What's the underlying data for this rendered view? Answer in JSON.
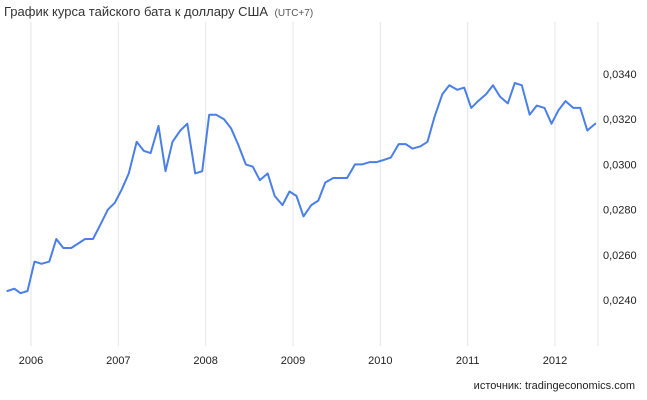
{
  "title": "График курса тайского бата к доллару США",
  "timezone": "(UTC+7)",
  "source": {
    "label": "источник:",
    "name": "tradingeconomics.com"
  },
  "colors": {
    "line": "#4a7fe8",
    "grid": "#e6e6e6",
    "axis_text": "#222222"
  },
  "chart_data": {
    "type": "line",
    "title": "График курса тайского бата к доллару США",
    "xlabel": "",
    "ylabel": "",
    "x_ticks": [
      "2006",
      "2007",
      "2008",
      "2009",
      "2010",
      "2011",
      "2012"
    ],
    "y_ticks": [
      "0,0240",
      "0,0260",
      "0,0280",
      "0,0300",
      "0,0320",
      "0,0340"
    ],
    "y_tick_values": [
      0.024,
      0.026,
      0.028,
      0.03,
      0.032,
      0.034
    ],
    "xlim": [
      2005.72,
      2012.48
    ],
    "ylim": [
      0.0225,
      0.0355
    ],
    "grid": true,
    "legend": "none",
    "series": [
      {
        "x": [
          2005.73,
          2005.81,
          2005.88,
          2005.96,
          2006.04,
          2006.12,
          2006.21,
          2006.29,
          2006.37,
          2006.46,
          2006.54,
          2006.62,
          2006.71,
          2006.79,
          2006.88,
          2006.96,
          2007.04,
          2007.12,
          2007.21,
          2007.29,
          2007.37,
          2007.46,
          2007.54,
          2007.62,
          2007.71,
          2007.79,
          2007.88,
          2007.96,
          2008.04,
          2008.12,
          2008.21,
          2008.29,
          2008.37,
          2008.46,
          2008.54,
          2008.62,
          2008.71,
          2008.79,
          2008.88,
          2008.96,
          2009.04,
          2009.12,
          2009.21,
          2009.29,
          2009.37,
          2009.46,
          2009.54,
          2009.62,
          2009.71,
          2009.79,
          2009.88,
          2009.96,
          2010.04,
          2010.12,
          2010.21,
          2010.29,
          2010.37,
          2010.46,
          2010.54,
          2010.62,
          2010.71,
          2010.79,
          2010.88,
          2010.96,
          2011.04,
          2011.12,
          2011.21,
          2011.29,
          2011.37,
          2011.46,
          2011.54,
          2011.62,
          2011.71,
          2011.79,
          2011.88,
          2011.96,
          2012.04,
          2012.12,
          2012.21,
          2012.29,
          2012.37,
          2012.46
        ],
        "y": [
          0.0244,
          0.0245,
          0.0243,
          0.0244,
          0.0257,
          0.0256,
          0.0257,
          0.0267,
          0.0263,
          0.0263,
          0.0265,
          0.0267,
          0.0267,
          0.0273,
          0.028,
          0.0283,
          0.0289,
          0.0296,
          0.031,
          0.0306,
          0.0305,
          0.0317,
          0.0297,
          0.031,
          0.0315,
          0.0318,
          0.0296,
          0.0297,
          0.0322,
          0.0322,
          0.032,
          0.0316,
          0.0309,
          0.03,
          0.0299,
          0.0293,
          0.0296,
          0.0286,
          0.0282,
          0.0288,
          0.0286,
          0.0277,
          0.0282,
          0.0284,
          0.0292,
          0.0294,
          0.0294,
          0.0294,
          0.03,
          0.03,
          0.0301,
          0.0301,
          0.0302,
          0.0303,
          0.0309,
          0.0309,
          0.0307,
          0.0308,
          0.031,
          0.0321,
          0.0331,
          0.0335,
          0.0333,
          0.0334,
          0.0325,
          0.0328,
          0.0331,
          0.0335,
          0.033,
          0.0327,
          0.0336,
          0.0335,
          0.0322,
          0.0326,
          0.0325,
          0.0318,
          0.0324,
          0.0328,
          0.0325,
          0.0325,
          0.0315,
          0.0318
        ]
      }
    ]
  }
}
